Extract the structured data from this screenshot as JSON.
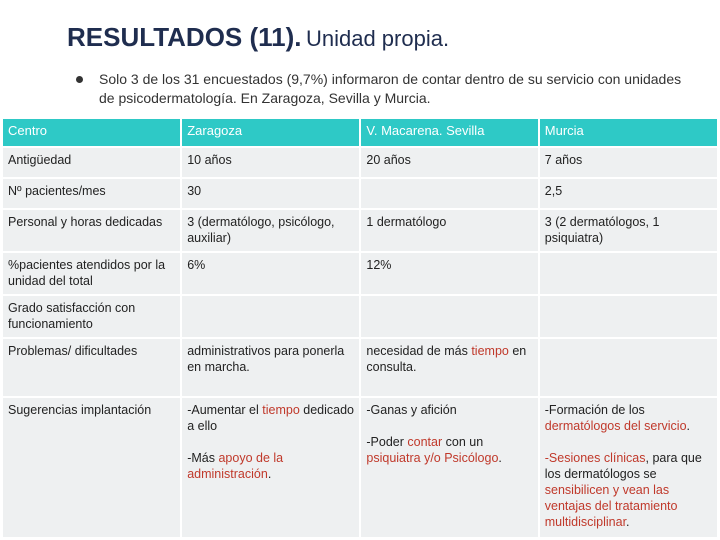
{
  "title": {
    "main": "RESULTADOS (11).",
    "sub": "Unidad propia."
  },
  "bullet": "Solo 3 de los 31 encuestados (9,7%) informaron de contar dentro de su servicio con unidades de psicodermatología. En Zaragoza, Sevilla y Murcia.",
  "table": {
    "header": [
      "Centro",
      "Zaragoza",
      "V. Macarena. Sevilla",
      "Murcia"
    ],
    "antiguedad": [
      "Antigüedad",
      "10 años",
      "20 años",
      "7 años"
    ],
    "pacientes": [
      "Nº pacientes/mes",
      "30",
      "",
      "2,5"
    ],
    "personal": [
      "Personal y horas dedicadas",
      "3 (dermatólogo, psicólogo, auxiliar)",
      "1 dermatólogo",
      "3 (2 dermatólogos, 1 psiquiatra)"
    ],
    "porcentaje": [
      "%pacientes atendidos por la unidad del total",
      "6%",
      "12%",
      ""
    ],
    "satisfaccion": [
      "Grado satisfacción con funcionamiento",
      "",
      "",
      ""
    ],
    "problemas": {
      "label": "Problemas/ dificultades",
      "zaragoza": "administrativos para ponerla en marcha.",
      "sevilla_a": "necesidad de más ",
      "sevilla_b": "tiempo",
      "sevilla_c": " en consulta.",
      "murcia": ""
    },
    "sugerencias": {
      "label": "Sugerencias implantación",
      "zaragoza": {
        "a1": "-Aumentar el ",
        "a2": "tiempo",
        "a3": " dedicado a ello",
        "b1": "-Más ",
        "b2": "apoyo de la administración",
        "b3": "."
      },
      "sevilla": {
        "a": "-Ganas y afición",
        "b1": "-Poder ",
        "b2": "contar",
        "b3": " con un ",
        "b4": "psiquiatra y/o Psicólogo",
        "b5": "."
      },
      "murcia": {
        "a1": "-Formación de los ",
        "a2": "dermatólogos",
        "a3": " ",
        "a4": "del servicio",
        "a5": ".",
        "b1": "-Sesiones clínicas",
        "b2": ", para que los dermatólogos se ",
        "b3": "sensibilicen y vean las ventajas del tratamiento multidisciplinar",
        "b4": "."
      }
    }
  },
  "colors": {
    "header_bg": "#2ec9c6",
    "cell_bg": "#eef0f1",
    "highlight": "#c0392b",
    "title": "#1f2d4f"
  }
}
